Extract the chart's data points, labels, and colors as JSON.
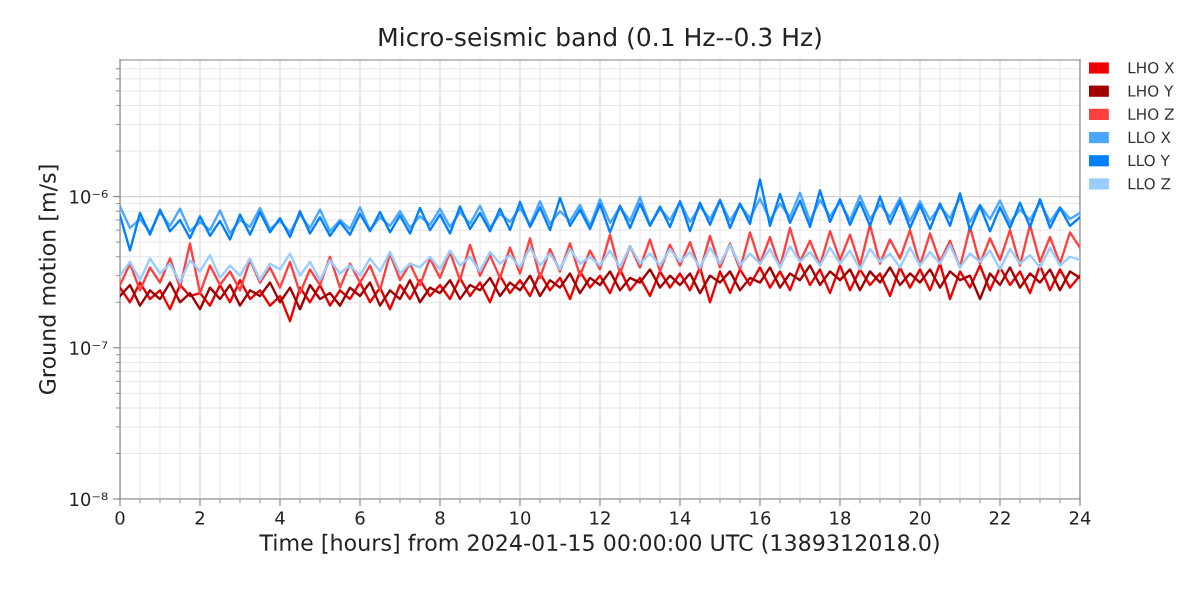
{
  "chart_data": {
    "type": "line",
    "title": "Micro-seismic band (0.1 Hz--0.3 Hz)",
    "xlabel": "Time [hours] from 2024-01-15 00:00:00 UTC (1389312018.0)",
    "ylabel": "Ground motion [m/s]",
    "log": "y",
    "grid": true,
    "legend": "top right",
    "line_style": "solid",
    "xlim": [
      0,
      24
    ],
    "ylim": [
      1e-08,
      8e-06
    ],
    "xticks": [
      0,
      {
        "value": 0.5,
        "label": null
      },
      {
        "value": 1,
        "label": null
      },
      {
        "value": 1.5,
        "label": null
      },
      2,
      {
        "value": 2.5,
        "label": null
      },
      {
        "value": 3,
        "label": null
      },
      {
        "value": 3.5,
        "label": null
      },
      4,
      {
        "value": 4.5,
        "label": null
      },
      {
        "value": 5,
        "label": null
      },
      {
        "value": 5.5,
        "label": null
      },
      6,
      {
        "value": 6.5,
        "label": null
      },
      {
        "value": 7,
        "label": null
      },
      {
        "value": 7.5,
        "label": null
      },
      8,
      {
        "value": 8.5,
        "label": null
      },
      {
        "value": 9,
        "label": null
      },
      {
        "value": 9.5,
        "label": null
      },
      10,
      {
        "value": 10.5,
        "label": null
      },
      {
        "value": 11,
        "label": null
      },
      {
        "value": 11.5,
        "label": null
      },
      12,
      {
        "value": 12.5,
        "label": null
      },
      {
        "value": 13,
        "label": null
      },
      {
        "value": 13.5,
        "label": null
      },
      14,
      {
        "value": 14.5,
        "label": null
      },
      {
        "value": 15,
        "label": null
      },
      {
        "value": 15.5,
        "label": null
      },
      16,
      {
        "value": 16.5,
        "label": null
      },
      {
        "value": 17,
        "label": null
      },
      {
        "value": 17.5,
        "label": null
      },
      18,
      {
        "value": 18.5,
        "label": null
      },
      {
        "value": 19,
        "label": null
      },
      {
        "value": 19.5,
        "label": null
      },
      20,
      {
        "value": 20.5,
        "label": null
      },
      {
        "value": 21,
        "label": null
      },
      {
        "value": 21.5,
        "label": null
      },
      22,
      {
        "value": 22.5,
        "label": null
      },
      {
        "value": 23,
        "label": null
      },
      {
        "value": 23.5,
        "label": null
      },
      24
    ],
    "yticks": [
      {
        "value": 1e-08,
        "label": "10⁻⁸"
      },
      {
        "value": 2e-08,
        "label": null
      },
      {
        "value": 3e-08,
        "label": null
      },
      {
        "value": 4e-08,
        "label": null
      },
      {
        "value": 5e-08,
        "label": null
      },
      {
        "value": 6e-08,
        "label": null
      },
      {
        "value": 7e-08,
        "label": null
      },
      {
        "value": 8e-08,
        "label": null
      },
      {
        "value": 9e-08,
        "label": null
      },
      {
        "value": 1e-07,
        "label": "10⁻⁷"
      },
      {
        "value": 2e-07,
        "label": null
      },
      {
        "value": 3e-07,
        "label": null
      },
      {
        "value": 4e-07,
        "label": null
      },
      {
        "value": 5e-07,
        "label": null
      },
      {
        "value": 6e-07,
        "label": null
      },
      {
        "value": 7e-07,
        "label": null
      },
      {
        "value": 8e-07,
        "label": null
      },
      {
        "value": 9e-07,
        "label": null
      },
      {
        "value": 1e-06,
        "label": "10⁻⁶"
      },
      {
        "value": 2e-06,
        "label": null
      },
      {
        "value": 3e-06,
        "label": null
      },
      {
        "value": 4e-06,
        "label": null
      },
      {
        "value": 5e-06,
        "label": null
      },
      {
        "value": 6e-06,
        "label": null
      },
      {
        "value": 7e-06,
        "label": null
      }
    ],
    "x": [
      0,
      0.25,
      0.5,
      0.75,
      1,
      1.25,
      1.5,
      1.75,
      2,
      2.25,
      2.5,
      2.75,
      3,
      3.25,
      3.5,
      3.75,
      4,
      4.25,
      4.5,
      4.75,
      5,
      5.25,
      5.5,
      5.75,
      6,
      6.25,
      6.5,
      6.75,
      7,
      7.25,
      7.5,
      7.75,
      8,
      8.25,
      8.5,
      8.75,
      9,
      9.25,
      9.5,
      9.75,
      10,
      10.25,
      10.5,
      10.75,
      11,
      11.25,
      11.5,
      11.75,
      12,
      12.25,
      12.5,
      12.75,
      13,
      13.25,
      13.5,
      13.75,
      14,
      14.25,
      14.5,
      14.75,
      15,
      15.25,
      15.5,
      15.75,
      16,
      16.25,
      16.5,
      16.75,
      17,
      17.25,
      17.5,
      17.75,
      18,
      18.25,
      18.5,
      18.75,
      19,
      19.25,
      19.5,
      19.75,
      20,
      20.25,
      20.5,
      20.75,
      21,
      21.25,
      21.5,
      21.75,
      22,
      22.25,
      22.5,
      22.75,
      23,
      23.25,
      23.5,
      23.75,
      24
    ],
    "series": [
      {
        "name": "LHO X",
        "color": "#ee0000",
        "values": [
          2.5e-07,
          2e-07,
          2.7e-07,
          2.1e-07,
          2.4e-07,
          1.8e-07,
          2.6e-07,
          2.2e-07,
          2.3e-07,
          1.9e-07,
          2.6e-07,
          2e-07,
          2.8e-07,
          2.1e-07,
          2.4e-07,
          1.9e-07,
          2.2e-07,
          1.5e-07,
          2.5e-07,
          2e-07,
          2.6e-07,
          1.9e-07,
          2.4e-07,
          2.1e-07,
          2.7e-07,
          2e-07,
          2.5e-07,
          1.8e-07,
          2.6e-07,
          2.1e-07,
          2.8e-07,
          2.2e-07,
          2.6e-07,
          2.1e-07,
          2.9e-07,
          2.2e-07,
          2.7e-07,
          2e-07,
          3e-07,
          2.3e-07,
          2.8e-07,
          2.2e-07,
          3.1e-07,
          2.4e-07,
          2.9e-07,
          2.1e-07,
          3.2e-07,
          2.5e-07,
          3e-07,
          2.3e-07,
          3.3e-07,
          2.4e-07,
          2.9e-07,
          2.2e-07,
          3.2e-07,
          2.5e-07,
          3.1e-07,
          2.4e-07,
          3.4e-07,
          2e-07,
          3.2e-07,
          2.3e-07,
          3.3e-07,
          2.6e-07,
          3.4e-07,
          2.5e-07,
          3.2e-07,
          2.4e-07,
          3.6e-07,
          2.6e-07,
          3.3e-07,
          2.3e-07,
          3.5e-07,
          2.4e-07,
          3.3e-07,
          2.6e-07,
          3.1e-07,
          2.2e-07,
          3.4e-07,
          2.5e-07,
          3.3e-07,
          2.4e-07,
          3.6e-07,
          2.1e-07,
          3.2e-07,
          2.5e-07,
          3.5e-07,
          2.4e-07,
          3.4e-07,
          2.6e-07,
          3.2e-07,
          2.3e-07,
          3.5e-07,
          2.4e-07,
          3.3e-07,
          2.5e-07,
          3e-07
        ]
      },
      {
        "name": "LHO Y",
        "color": "#a00000",
        "values": [
          2.2e-07,
          2.6e-07,
          1.9e-07,
          2.4e-07,
          2.1e-07,
          2.7e-07,
          2e-07,
          2.3e-07,
          1.8e-07,
          2.5e-07,
          2.1e-07,
          2.6e-07,
          1.9e-07,
          2.4e-07,
          2.2e-07,
          2.7e-07,
          2e-07,
          2.5e-07,
          1.8e-07,
          2.6e-07,
          2.1e-07,
          2.3e-07,
          1.9e-07,
          2.5e-07,
          2.2e-07,
          2.7e-07,
          1.9e-07,
          2.4e-07,
          2.1e-07,
          2.8e-07,
          2e-07,
          2.5e-07,
          2.3e-07,
          2.8e-07,
          2.1e-07,
          2.6e-07,
          2.4e-07,
          2.9e-07,
          2.2e-07,
          2.7e-07,
          2.4e-07,
          3e-07,
          2.2e-07,
          2.8e-07,
          2.5e-07,
          3.1e-07,
          2.3e-07,
          2.9e-07,
          2.6e-07,
          3.2e-07,
          2.4e-07,
          2.9e-07,
          2.7e-07,
          3.3e-07,
          2.5e-07,
          3e-07,
          2.6e-07,
          3.1e-07,
          2.3e-07,
          3e-07,
          2.7e-07,
          3.2e-07,
          2.4e-07,
          2.9e-07,
          2.7e-07,
          3.4e-07,
          2.5e-07,
          3.1e-07,
          2.8e-07,
          3.5e-07,
          2.6e-07,
          3.2e-07,
          2.8e-07,
          3.3e-07,
          2.4e-07,
          3.2e-07,
          2.7e-07,
          3.4e-07,
          2.6e-07,
          3.1e-07,
          2.7e-07,
          3.3e-07,
          2.5e-07,
          3.2e-07,
          2.8e-07,
          3e-07,
          2.1e-07,
          3.1e-07,
          2.6e-07,
          3.4e-07,
          2.5e-07,
          3.1e-07,
          2.7e-07,
          3.3e-07,
          2.4e-07,
          3.2e-07,
          2.9e-07
        ]
      },
      {
        "name": "LHO Z",
        "color": "#ff4040",
        "values": [
          2.6e-07,
          3.6e-07,
          2.4e-07,
          3.4e-07,
          2.7e-07,
          3.9e-07,
          2.5e-07,
          4.9e-07,
          2.3e-07,
          3.5e-07,
          2.6e-07,
          3.2e-07,
          2.4e-07,
          3.8e-07,
          2.7e-07,
          3.4e-07,
          2.5e-07,
          3.7e-07,
          2.3e-07,
          3.3e-07,
          2.6e-07,
          4e-07,
          2.5e-07,
          3.6e-07,
          2.7e-07,
          3.5e-07,
          2.4e-07,
          4.2e-07,
          2.8e-07,
          3.6e-07,
          2.6e-07,
          3.9e-07,
          2.9e-07,
          4.3e-07,
          2.8e-07,
          4.8e-07,
          3e-07,
          4.1e-07,
          2.9e-07,
          4.6e-07,
          3.1e-07,
          5.3e-07,
          2.9e-07,
          4.5e-07,
          3.2e-07,
          4.9e-07,
          3e-07,
          4.4e-07,
          3.3e-07,
          5.6e-07,
          3.1e-07,
          4.7e-07,
          3.4e-07,
          5.2e-07,
          3.2e-07,
          4.8e-07,
          3.5e-07,
          5e-07,
          3.2e-07,
          5.5e-07,
          3.4e-07,
          4.9e-07,
          3.3e-07,
          5.8e-07,
          3.6e-07,
          5.4e-07,
          3.4e-07,
          6.2e-07,
          3.7e-07,
          5.1e-07,
          3.5e-07,
          5.9e-07,
          3.8e-07,
          5.6e-07,
          3.5e-07,
          6.5e-07,
          3.6e-07,
          5.2e-07,
          3.9e-07,
          6e-07,
          3.5e-07,
          5.7e-07,
          3.7e-07,
          5.1e-07,
          3.4e-07,
          6.3e-07,
          3.6e-07,
          5.3e-07,
          3.8e-07,
          6e-07,
          3.5e-07,
          6.5e-07,
          3.7e-07,
          5.4e-07,
          3.6e-07,
          5.8e-07,
          4.6e-07
        ]
      },
      {
        "name": "LLO X",
        "color": "#4ba6ff",
        "values": [
          8.6e-07,
          6.2e-07,
          7.1e-07,
          5.8e-07,
          7.9e-07,
          6.4e-07,
          8.3e-07,
          5.9e-07,
          6.8e-07,
          6e-07,
          8.1e-07,
          5.7e-07,
          7e-07,
          6.3e-07,
          8.4e-07,
          6.1e-07,
          6.9e-07,
          5.8e-07,
          7.6e-07,
          6.2e-07,
          8.2e-07,
          5.9e-07,
          7e-07,
          6.1e-07,
          8.5e-07,
          6e-07,
          7.3e-07,
          6.4e-07,
          8e-07,
          6.2e-07,
          7.4e-07,
          6.5e-07,
          8.3e-07,
          6.3e-07,
          7.9e-07,
          6.6e-07,
          8.7e-07,
          6.2e-07,
          7.7e-07,
          6.8e-07,
          8.4e-07,
          6.5e-07,
          9.3e-07,
          6.6e-07,
          8e-07,
          6.9e-07,
          8.8e-07,
          6.4e-07,
          9.6e-07,
          6.7e-07,
          8.5e-07,
          6.9e-07,
          9.9e-07,
          6.5e-07,
          8.3e-07,
          7e-07,
          9.2e-07,
          6.8e-07,
          8.6e-07,
          7.1e-07,
          9.4e-07,
          6.9e-07,
          8.8e-07,
          7.2e-07,
          9.7e-07,
          7e-07,
          9e-07,
          7.3e-07,
          1.06e-06,
          6.9e-07,
          9.5e-07,
          7.4e-07,
          9.2e-07,
          7e-07,
          1.01e-06,
          7.1e-07,
          8.9e-07,
          7.3e-07,
          9.8e-07,
          6.9e-07,
          9.3e-07,
          7e-07,
          8.6e-07,
          7.2e-07,
          9.9e-07,
          6.8e-07,
          8.8e-07,
          7.1e-07,
          9.4e-07,
          6.7e-07,
          8.2e-07,
          7e-07,
          9.2e-07,
          6.8e-07,
          8.5e-07,
          7.1e-07,
          7.8e-07
        ]
      },
      {
        "name": "LLO Y",
        "color": "#0080ff",
        "values": [
          7.5e-07,
          4.4e-07,
          7.8e-07,
          5.6e-07,
          8.2e-07,
          5.9e-07,
          7e-07,
          5.3e-07,
          7.4e-07,
          5.5e-07,
          6.9e-07,
          5.2e-07,
          7.6e-07,
          5.6e-07,
          7.9e-07,
          5.8e-07,
          7.2e-07,
          5.4e-07,
          8e-07,
          5.7e-07,
          7.3e-07,
          5.5e-07,
          6.8e-07,
          5.6e-07,
          7.7e-07,
          5.9e-07,
          7.9e-07,
          5.8e-07,
          7.5e-07,
          5.7e-07,
          8.4e-07,
          6e-07,
          7.6e-07,
          5.7e-07,
          8.6e-07,
          6.1e-07,
          7.8e-07,
          5.9e-07,
          8.3e-07,
          6e-07,
          9.2e-07,
          6.3e-07,
          8.5e-07,
          6e-07,
          9.8e-07,
          6.4e-07,
          8.2e-07,
          6.1e-07,
          8.9e-07,
          5.8e-07,
          8.7e-07,
          6.2e-07,
          9e-07,
          6.4e-07,
          8.6e-07,
          6.3e-07,
          9.3e-07,
          5.9e-07,
          9.1e-07,
          6.5e-07,
          9.5e-07,
          6.2e-07,
          9e-07,
          6.6e-07,
          1.3e-06,
          6.4e-07,
          1.04e-06,
          6.7e-07,
          9.4e-07,
          6.3e-07,
          1.1e-06,
          6.8e-07,
          9.6e-07,
          6.5e-07,
          9.2e-07,
          6.4e-07,
          1e-06,
          6.6e-07,
          9.3e-07,
          6.2e-07,
          8.8e-07,
          6.1e-07,
          9e-07,
          6.4e-07,
          1.05e-06,
          6e-07,
          8.7e-07,
          5.9e-07,
          8.5e-07,
          6.2e-07,
          9.1e-07,
          6.3e-07,
          9.6e-07,
          6.2e-07,
          8.4e-07,
          6.4e-07,
          7.3e-07
        ]
      },
      {
        "name": "LLO Z",
        "color": "#99ccff",
        "values": [
          3e-07,
          3.7e-07,
          2.8e-07,
          3.9e-07,
          3.1e-07,
          3.6e-07,
          2.7e-07,
          3.8e-07,
          3.2e-07,
          4.1e-07,
          2.9e-07,
          3.5e-07,
          3e-07,
          3.9e-07,
          2.8e-07,
          3.6e-07,
          3.3e-07,
          4.2e-07,
          3e-07,
          3.7e-07,
          2.8e-07,
          3.8e-07,
          3.1e-07,
          3.5e-07,
          3e-07,
          3.9e-07,
          3.2e-07,
          4.3e-07,
          3.1e-07,
          3.6e-07,
          3.4e-07,
          4e-07,
          3.3e-07,
          4.4e-07,
          3.5e-07,
          4e-07,
          3.2e-07,
          4.3e-07,
          3.6e-07,
          4.1e-07,
          3.4e-07,
          4.6e-07,
          3.5e-07,
          4.2e-07,
          3.3e-07,
          4.5e-07,
          3.6e-07,
          4e-07,
          3.5e-07,
          4.4e-07,
          3.4e-07,
          4.7e-07,
          3.6e-07,
          4.2e-07,
          3.5e-07,
          4.5e-07,
          3.7e-07,
          4.3e-07,
          3.4e-07,
          4.6e-07,
          3.6e-07,
          4.8e-07,
          3.5e-07,
          4.2e-07,
          3.6e-07,
          4.5e-07,
          3.4e-07,
          4.7e-07,
          3.7e-07,
          4.3e-07,
          3.5e-07,
          4.6e-07,
          3.6e-07,
          4.4e-07,
          3.3e-07,
          4.5e-07,
          3.7e-07,
          4.2e-07,
          3.4e-07,
          4.6e-07,
          3.5e-07,
          4.3e-07,
          3.6e-07,
          4.8e-07,
          3.4e-07,
          4.2e-07,
          3.7e-07,
          4.4e-07,
          3.3e-07,
          4.5e-07,
          3.6e-07,
          4.1e-07,
          3.4e-07,
          4.6e-07,
          3.5e-07,
          4e-07,
          3.8e-07
        ]
      }
    ]
  }
}
